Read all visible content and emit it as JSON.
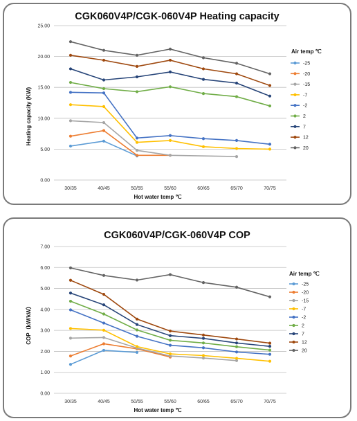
{
  "chart_data": [
    {
      "type": "line",
      "title": "CGK060V4P/CGK-060V4P Heating capacity",
      "xlabel": "Hot water temp ℃",
      "ylabel": "Heating capacity (KW)",
      "ylim": [
        0,
        25
      ],
      "yticks": [
        0,
        5,
        10,
        15,
        20,
        25
      ],
      "ytick_format": 2,
      "grid": true,
      "legend_title": "Air temp ℃",
      "legend_position": "right",
      "categories": [
        "30/35",
        "40/45",
        "50/55",
        "55/60",
        "60/65",
        "65/70",
        "70/75"
      ],
      "series": [
        {
          "name": "-25",
          "color": "#5b9bd5",
          "values": [
            5.5,
            6.3,
            3.9,
            null,
            null,
            null,
            null
          ]
        },
        {
          "name": "-20",
          "color": "#ed7d31",
          "values": [
            7.1,
            8.0,
            4.0,
            4.0,
            null,
            null,
            null
          ]
        },
        {
          "name": "-15",
          "color": "#a5a5a5",
          "values": [
            9.6,
            9.3,
            4.8,
            4.0,
            null,
            3.8,
            null
          ]
        },
        {
          "name": "-7",
          "color": "#ffc000",
          "values": [
            12.2,
            11.9,
            6.1,
            6.4,
            5.4,
            5.1,
            5.0
          ]
        },
        {
          "name": "-2",
          "color": "#4472c4",
          "values": [
            14.2,
            14.1,
            6.8,
            7.2,
            6.7,
            6.4,
            5.8
          ]
        },
        {
          "name": "2",
          "color": "#70ad47",
          "values": [
            15.8,
            14.8,
            14.3,
            15.1,
            14.0,
            13.5,
            12.0
          ]
        },
        {
          "name": "7",
          "color": "#264478",
          "values": [
            18.0,
            16.2,
            16.7,
            17.5,
            16.3,
            15.7,
            13.6
          ]
        },
        {
          "name": "12",
          "color": "#9e480e",
          "values": [
            20.2,
            19.4,
            18.4,
            19.4,
            18.0,
            17.2,
            15.3
          ]
        },
        {
          "name": "20",
          "color": "#636363",
          "values": [
            22.4,
            21.0,
            20.2,
            21.2,
            19.8,
            18.9,
            17.2
          ]
        }
      ]
    },
    {
      "type": "line",
      "title": "CGK060V4P/CGK-060V4P COP",
      "xlabel": "Hot water temp ℃",
      "ylabel": "COP（kW/kW）",
      "ylim": [
        0,
        7
      ],
      "yticks": [
        0,
        1,
        2,
        3,
        4,
        5,
        6,
        7
      ],
      "ytick_format": 2,
      "grid": true,
      "legend_title": "Air temp ℃",
      "legend_position": "right",
      "categories": [
        "30/35",
        "40/45",
        "50/55",
        "55/60",
        "60/65",
        "65/70",
        "70/75"
      ],
      "series": [
        {
          "name": "-25",
          "color": "#5b9bd5",
          "values": [
            1.38,
            2.05,
            1.95,
            null,
            null,
            null,
            null
          ]
        },
        {
          "name": "-20",
          "color": "#ed7d31",
          "values": [
            1.78,
            2.36,
            2.12,
            1.73,
            null,
            null,
            null
          ]
        },
        {
          "name": "-15",
          "color": "#a5a5a5",
          "values": [
            2.63,
            2.66,
            2.16,
            1.78,
            1.68,
            1.56,
            null
          ]
        },
        {
          "name": "-7",
          "color": "#ffc000",
          "values": [
            3.09,
            3.01,
            2.23,
            1.88,
            1.8,
            1.67,
            1.53
          ]
        },
        {
          "name": "-2",
          "color": "#4472c4",
          "values": [
            3.98,
            3.35,
            2.72,
            2.29,
            2.17,
            1.97,
            1.86
          ]
        },
        {
          "name": "2",
          "color": "#70ad47",
          "values": [
            4.39,
            3.78,
            3.02,
            2.53,
            2.4,
            2.22,
            2.06
          ]
        },
        {
          "name": "7",
          "color": "#264478",
          "values": [
            4.78,
            4.22,
            3.28,
            2.75,
            2.62,
            2.4,
            2.24
          ]
        },
        {
          "name": "12",
          "color": "#9e480e",
          "values": [
            5.39,
            4.72,
            3.54,
            2.97,
            2.78,
            2.59,
            2.39
          ]
        },
        {
          "name": "20",
          "color": "#636363",
          "values": [
            5.98,
            5.62,
            5.4,
            5.66,
            5.28,
            5.06,
            4.6
          ]
        }
      ]
    }
  ]
}
